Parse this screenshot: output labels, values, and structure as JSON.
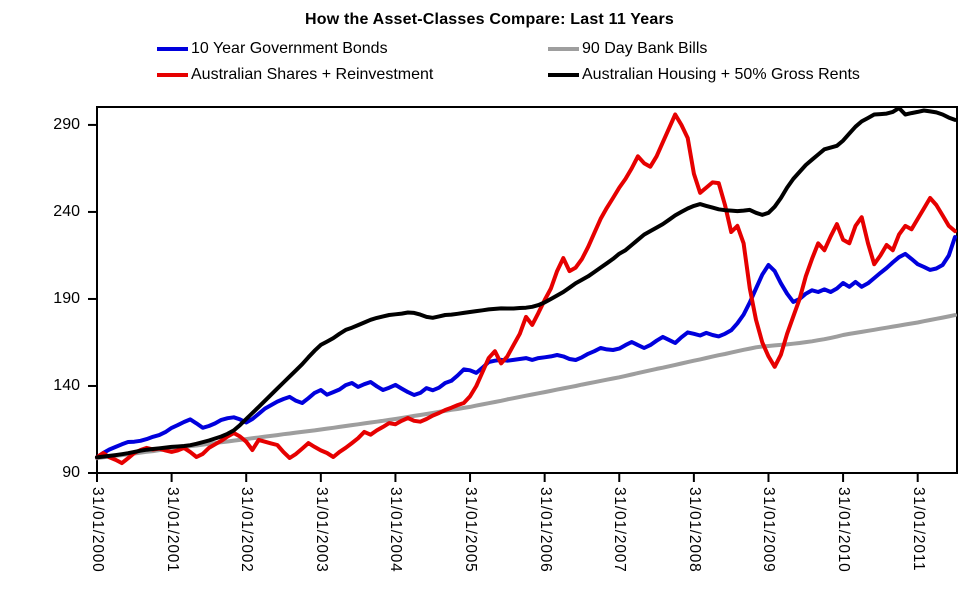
{
  "title": "How the Asset-Classes Compare: Last 11 Years",
  "legend": [
    {
      "label": "10 Year Government Bonds",
      "color": "#0000dd"
    },
    {
      "label": "90 Day Bank Bills",
      "color": "#9e9e9e"
    },
    {
      "label": "Australian Shares + Reinvestment",
      "color": "#e60000"
    },
    {
      "label": "Australian Housing + 50% Gross Rents",
      "color": "#000000"
    }
  ],
  "chart_data": {
    "type": "line",
    "title": "How the Asset-Classes Compare: Last 11 Years",
    "x_unit": "monthly",
    "x_start": "31/01/2000",
    "x_end": "31/07/2011",
    "points_per_year": 12,
    "x_tick_labels": [
      "31/01/2000",
      "31/01/2001",
      "31/01/2002",
      "31/01/2003",
      "31/01/2004",
      "31/01/2005",
      "31/01/2006",
      "31/01/2007",
      "31/01/2008",
      "31/01/2009",
      "31/01/2010",
      "31/01/2011"
    ],
    "y_ticks": [
      90,
      140,
      190,
      240,
      290
    ],
    "ylim": [
      90,
      300.3
    ],
    "grid": false,
    "legend_position": "top",
    "series": [
      {
        "name": "90 Day Bank Bills",
        "color": "#9e9e9e",
        "values": [
          98.5,
          99.0,
          99.4,
          99.9,
          100.3,
          100.8,
          101.2,
          101.7,
          102.2,
          102.6,
          103.1,
          103.5,
          104.0,
          104.5,
          104.9,
          105.4,
          105.8,
          106.3,
          106.8,
          107.2,
          107.7,
          108.1,
          108.6,
          109.0,
          109.5,
          110.0,
          110.4,
          110.9,
          111.3,
          111.8,
          112.3,
          112.7,
          113.2,
          113.6,
          114.1,
          114.5,
          115.0,
          115.5,
          116.0,
          116.5,
          117.0,
          117.5,
          118.0,
          118.5,
          119.0,
          119.5,
          120.0,
          120.5,
          121.0,
          121.6,
          122.2,
          122.8,
          123.3,
          123.9,
          124.5,
          125.1,
          125.7,
          126.3,
          126.8,
          127.4,
          128.0,
          128.7,
          129.4,
          130.1,
          130.8,
          131.5,
          132.3,
          133.0,
          133.7,
          134.4,
          135.1,
          135.8,
          136.5,
          137.2,
          137.9,
          138.6,
          139.3,
          140.0,
          140.8,
          141.5,
          142.2,
          142.9,
          143.6,
          144.3,
          145.0,
          145.8,
          146.6,
          147.4,
          148.2,
          149.0,
          149.8,
          150.5,
          151.3,
          152.1,
          152.9,
          153.7,
          154.5,
          155.3,
          156.1,
          156.9,
          157.7,
          158.4,
          159.2,
          160.0,
          160.8,
          161.5,
          162.2,
          162.7,
          163.0,
          163.3,
          163.6,
          163.9,
          164.3,
          164.7,
          165.2,
          165.7,
          166.3,
          166.9,
          167.6,
          168.4,
          169.3,
          169.9,
          170.5,
          171.1,
          171.7,
          172.3,
          172.9,
          173.5,
          174.1,
          174.7,
          175.3,
          175.9,
          176.5,
          177.2,
          177.9,
          178.6,
          179.3,
          180.0,
          180.7
        ]
      },
      {
        "name": "10 Year Government Bonds",
        "color": "#0000dd",
        "values": [
          99.0,
          101.5,
          103.5,
          105.0,
          106.5,
          107.8,
          108.0,
          108.5,
          109.5,
          110.8,
          111.8,
          113.5,
          115.9,
          117.5,
          119.3,
          120.8,
          118.5,
          116.0,
          117.0,
          118.5,
          120.5,
          121.5,
          122.0,
          120.8,
          119.0,
          121.0,
          124.0,
          127.0,
          129.0,
          131.0,
          132.5,
          133.7,
          131.5,
          130.2,
          133.0,
          136.0,
          137.7,
          135.0,
          136.5,
          138.0,
          140.5,
          141.7,
          139.5,
          141.0,
          142.3,
          139.8,
          137.7,
          139.0,
          140.6,
          138.5,
          136.5,
          134.8,
          136.0,
          138.8,
          137.5,
          139.0,
          141.7,
          143.0,
          146.0,
          149.5,
          149.0,
          147.5,
          150.5,
          153.8,
          154.5,
          155.0,
          154.5,
          155.0,
          155.5,
          156.0,
          155.0,
          156.0,
          156.5,
          157.0,
          157.8,
          157.0,
          155.5,
          154.9,
          156.5,
          158.5,
          160.0,
          161.8,
          161.0,
          160.7,
          161.5,
          163.5,
          165.3,
          163.5,
          161.8,
          163.5,
          166.0,
          168.2,
          166.5,
          164.7,
          168.0,
          170.8,
          170.0,
          169.0,
          170.5,
          169.3,
          168.5,
          170.0,
          172.0,
          176.0,
          181.0,
          188.0,
          196.0,
          204.0,
          209.5,
          206.0,
          199.0,
          193.0,
          188.3,
          190.0,
          193.0,
          195.0,
          194.0,
          195.5,
          194.0,
          196.0,
          199.2,
          197.0,
          199.8,
          197.0,
          199.0,
          202.0,
          205.0,
          207.8,
          211.0,
          214.0,
          215.9,
          213.0,
          210.0,
          208.4,
          206.7,
          207.5,
          209.5,
          215.0,
          225.6
        ]
      },
      {
        "name": "Australian Shares + Reinvestment",
        "color": "#e60000",
        "values": [
          99.0,
          101.5,
          99.0,
          97.5,
          95.7,
          98.5,
          101.5,
          103.2,
          104.4,
          103.5,
          104.0,
          103.0,
          102.1,
          103.0,
          104.4,
          102.0,
          99.2,
          101.0,
          104.4,
          106.5,
          108.5,
          111.0,
          113.0,
          111.0,
          108.0,
          103.2,
          109.0,
          108.0,
          107.0,
          106.1,
          102.0,
          98.6,
          101.0,
          104.0,
          107.2,
          105.0,
          103.0,
          101.5,
          99.2,
          102.1,
          104.5,
          107.2,
          110.0,
          113.6,
          112.0,
          114.5,
          116.5,
          118.7,
          118.0,
          120.0,
          121.6,
          120.0,
          119.5,
          121.0,
          123.0,
          124.5,
          126.2,
          127.5,
          129.0,
          130.2,
          134.0,
          140.0,
          148.0,
          156.0,
          160.0,
          153.0,
          157.0,
          163.6,
          170.0,
          179.7,
          175.1,
          182.0,
          189.4,
          196.0,
          206.0,
          213.5,
          206.0,
          208.0,
          213.0,
          220.0,
          228.0,
          236.0,
          242.3,
          248.0,
          254.0,
          259.0,
          265.0,
          272.0,
          268.0,
          266.0,
          272.0,
          280.0,
          288.0,
          296.0,
          290.0,
          282.5,
          262.0,
          251.0,
          254.0,
          257.0,
          256.6,
          244.0,
          228.5,
          232.0,
          222.0,
          196.0,
          178.0,
          165.0,
          157.0,
          151.0,
          158.0,
          170.0,
          180.0,
          190.0,
          203.0,
          213.0,
          222.0,
          218.0,
          226.0,
          233.0,
          224.0,
          222.0,
          232.0,
          237.0,
          222.0,
          210.0,
          215.0,
          221.0,
          218.0,
          227.0,
          232.0,
          230.0,
          236.0,
          242.0,
          248.0,
          244.0,
          238.0,
          232.0,
          229.0
        ]
      },
      {
        "name": "Australian Housing + 50% Gross Rents",
        "color": "#000000",
        "values": [
          99.0,
          99.4,
          99.8,
          100.3,
          100.8,
          101.4,
          102.1,
          102.8,
          103.4,
          103.8,
          104.2,
          104.6,
          105.0,
          105.2,
          105.5,
          106.0,
          106.8,
          107.7,
          108.7,
          109.8,
          111.0,
          112.5,
          114.5,
          117.5,
          121.0,
          124.5,
          128.0,
          131.5,
          135.0,
          138.5,
          142.0,
          145.5,
          149.0,
          152.5,
          156.5,
          160.3,
          163.6,
          165.5,
          167.5,
          170.0,
          172.2,
          173.5,
          175.0,
          176.5,
          178.0,
          179.1,
          180.0,
          180.8,
          181.2,
          181.6,
          182.2,
          182.0,
          181.0,
          179.7,
          179.2,
          180.0,
          180.8,
          181.0,
          181.5,
          182.0,
          182.5,
          183.0,
          183.5,
          184.0,
          184.3,
          184.6,
          184.5,
          184.5,
          184.8,
          185.0,
          185.5,
          186.5,
          188.0,
          190.0,
          192.0,
          194.0,
          196.5,
          199.0,
          201.0,
          203.0,
          205.5,
          208.0,
          210.5,
          213.0,
          216.0,
          218.0,
          221.0,
          224.0,
          227.0,
          229.0,
          231.0,
          233.0,
          235.5,
          238.0,
          240.0,
          242.0,
          243.5,
          244.5,
          243.5,
          242.5,
          241.5,
          241.0,
          240.8,
          240.5,
          240.8,
          241.2,
          239.5,
          238.3,
          239.5,
          243.0,
          248.0,
          254.0,
          259.0,
          263.0,
          267.0,
          270.0,
          273.0,
          276.0,
          277.0,
          278.0,
          281.0,
          285.0,
          289.0,
          292.0,
          294.0,
          296.0,
          296.2,
          296.5,
          297.5,
          299.7,
          296.0,
          296.8,
          297.5,
          298.3,
          297.8,
          297.2,
          296.0,
          294.2,
          292.9
        ]
      }
    ]
  }
}
